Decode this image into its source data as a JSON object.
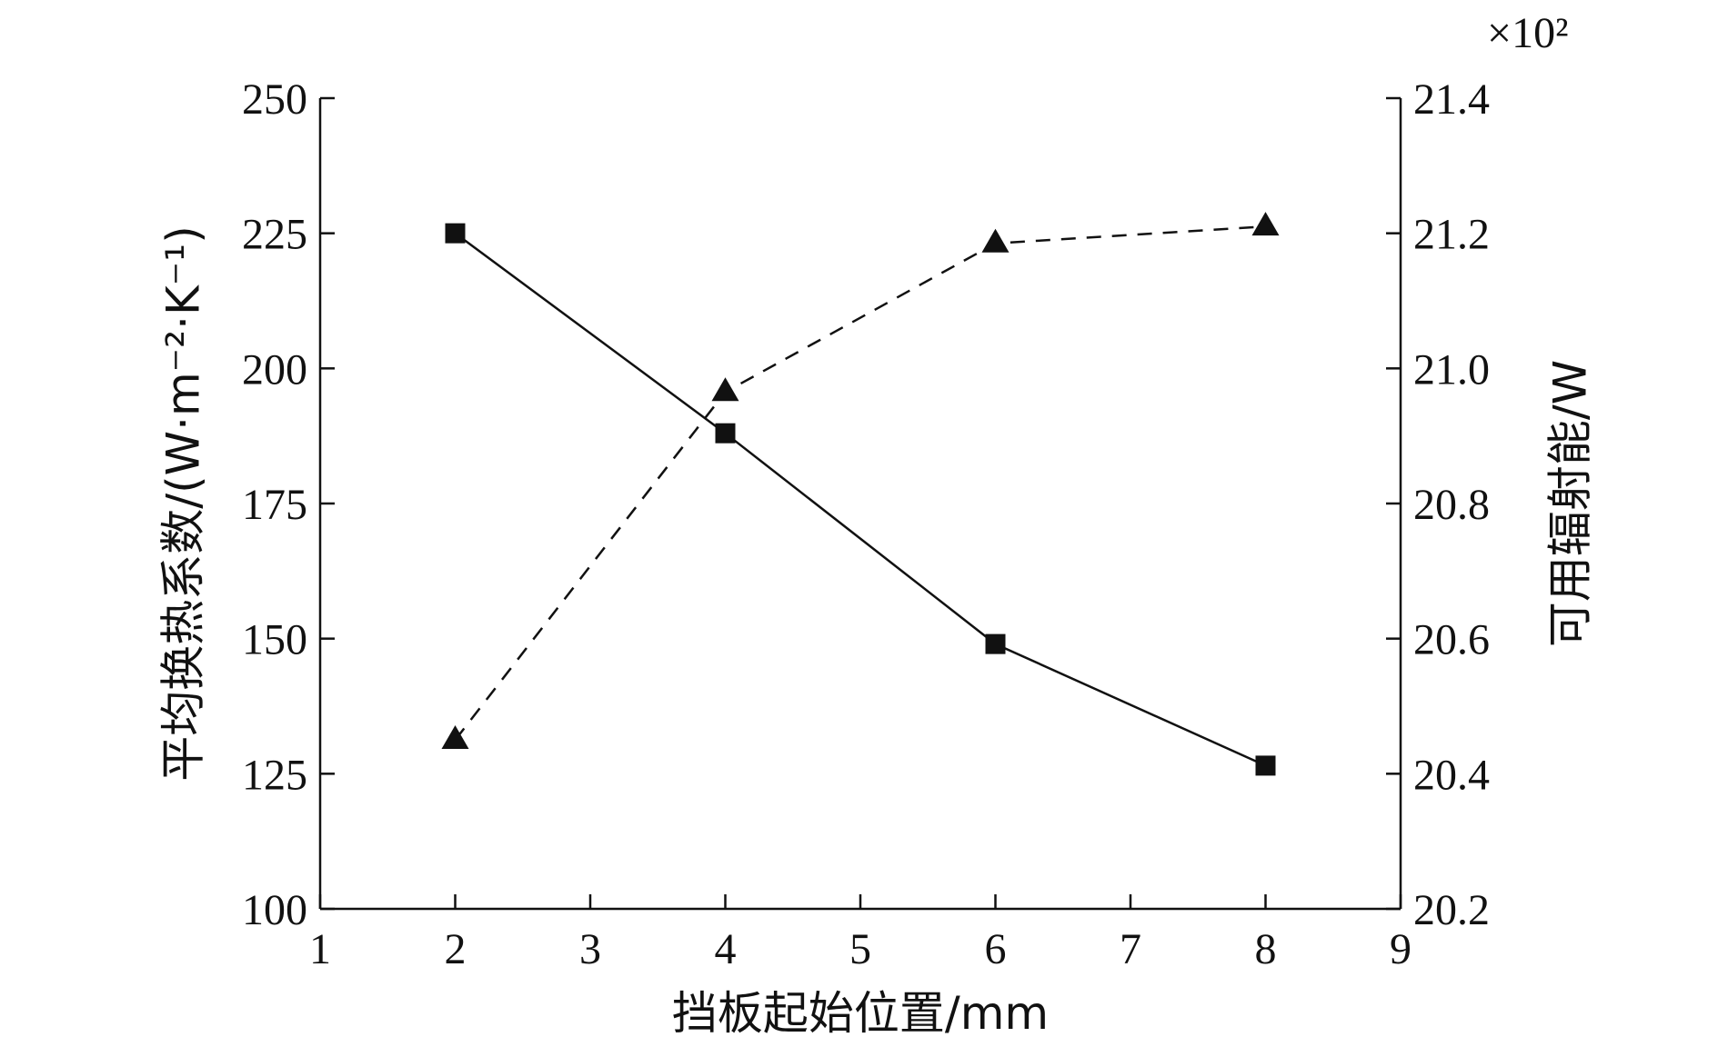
{
  "chart_data": {
    "type": "line",
    "xlabel": "挡板起始位置/mm",
    "ylabel_left": "平均换热系数/(W·m⁻²·K⁻¹)",
    "ylabel_right": "可用辐射能/W",
    "right_multiplier": "×10²",
    "xlim": [
      1,
      9
    ],
    "ylim_left": [
      100,
      250
    ],
    "ylim_right": [
      20.2,
      21.4
    ],
    "x_ticks": [
      "1",
      "2",
      "3",
      "4",
      "5",
      "6",
      "7",
      "8",
      "9"
    ],
    "y_left_ticks": [
      "100",
      "125",
      "150",
      "175",
      "200",
      "225",
      "250"
    ],
    "y_right_ticks": [
      "20.2",
      "20.4",
      "20.6",
      "20.8",
      "21.0",
      "21.2",
      "21.4"
    ],
    "grid": false,
    "series": [
      {
        "axis": "left",
        "marker": "square",
        "line_style": "solid",
        "x": [
          2,
          4,
          6,
          8
        ],
        "values": [
          225,
          188,
          149,
          126.5
        ]
      },
      {
        "axis": "right",
        "marker": "triangle",
        "line_style": "dashed",
        "x": [
          2,
          4,
          6,
          8
        ],
        "values": [
          20.45,
          20.965,
          21.185,
          21.21
        ]
      }
    ]
  }
}
